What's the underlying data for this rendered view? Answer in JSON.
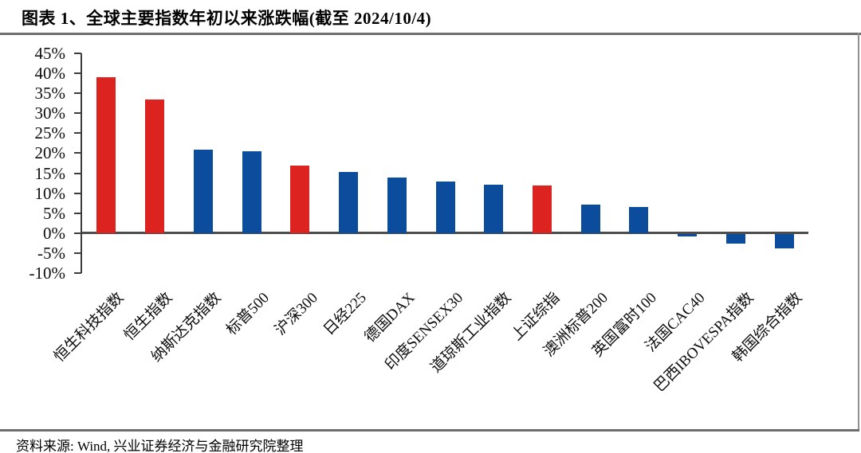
{
  "header": {
    "title": "图表 1、全球主要指数年初以来涨跌幅(截至 2024/10/4)"
  },
  "footer": {
    "source": "资料来源: Wind, 兴业证券经济与金融研究院整理"
  },
  "colors": {
    "highlight_bar": "#DD2320",
    "default_bar": "#0B4D9C",
    "axis": "#3d3d3d",
    "zero_line": "#4d4d4d",
    "rule": "#6e6e6e"
  },
  "chart_data": {
    "type": "bar",
    "title": "全球主要指数年初以来涨跌幅(截至 2024/10/4)",
    "xlabel": "",
    "ylabel": "",
    "categories": [
      "恒生科技指数",
      "恒生指数",
      "纳斯达克指数",
      "标普500",
      "沪深300",
      "日经225",
      "德国DAX",
      "印度SENSEX30",
      "道琼斯工业指数",
      "上证综指",
      "澳洲标普200",
      "英国富时100",
      "法国CAC40",
      "巴西IBOVESPA指数",
      "韩国综合指数"
    ],
    "values": [
      39.0,
      33.5,
      20.9,
      20.5,
      16.9,
      15.4,
      13.9,
      12.9,
      12.1,
      11.9,
      7.2,
      6.6,
      -0.5,
      -2.3,
      -3.6
    ],
    "bar_colors": [
      "#DD2320",
      "#DD2320",
      "#0B4D9C",
      "#0B4D9C",
      "#DD2320",
      "#0B4D9C",
      "#0B4D9C",
      "#0B4D9C",
      "#0B4D9C",
      "#DD2320",
      "#0B4D9C",
      "#0B4D9C",
      "#0B4D9C",
      "#0B4D9C",
      "#0B4D9C"
    ],
    "y_ticks": [
      "45%",
      "40%",
      "35%",
      "30%",
      "25%",
      "20%",
      "15%",
      "10%",
      "5%",
      "0%",
      "-5%",
      "-10%"
    ],
    "ylim": [
      -10,
      45
    ],
    "y_tick_step": 5,
    "grid": false,
    "legend": false,
    "x_labels_rotation_deg": 45
  }
}
